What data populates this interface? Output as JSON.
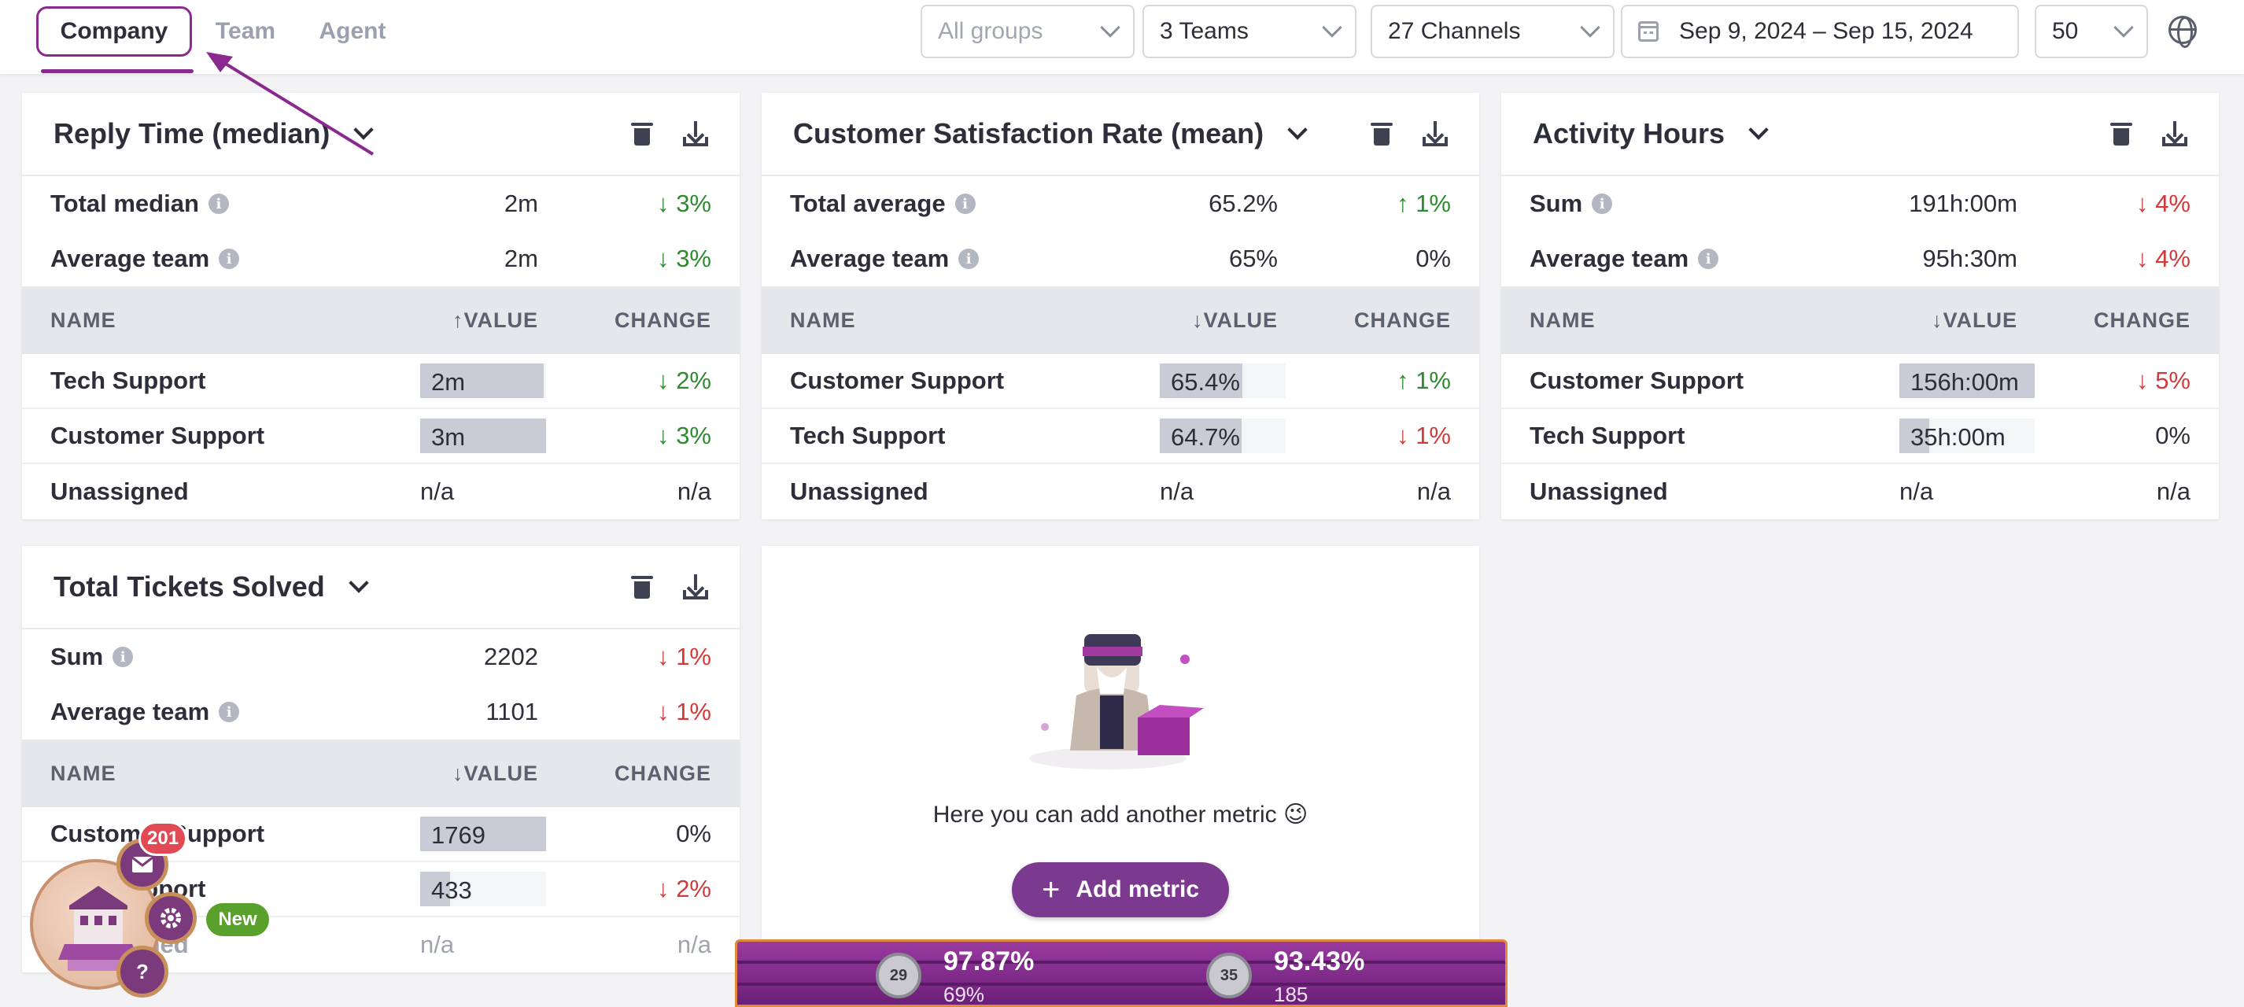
{
  "tabs": [
    "Company",
    "Team",
    "Agent"
  ],
  "filters": {
    "groups_placeholder": "All groups",
    "teams": "3 Teams",
    "channels": "27 Channels",
    "date_range": "Sep 9, 2024 – Sep 15, 2024",
    "page_size": "50"
  },
  "common": {
    "col_name": "NAME",
    "col_value": "VALUE",
    "col_change": "CHANGE",
    "info_glyph": "i"
  },
  "cards": {
    "reply_time": {
      "title": "Reply Time (median)",
      "summary": [
        {
          "label": "Total median",
          "value": "2m",
          "change": "↓ 3%"
        },
        {
          "label": "Average team",
          "value": "2m",
          "change": "↓ 3%"
        }
      ],
      "sort_arrow": "↑",
      "rows": [
        {
          "name": "Tech Support",
          "value": "2m",
          "change": "↓ 2%"
        },
        {
          "name": "Customer Support",
          "value": "3m",
          "change": "↓ 3%"
        },
        {
          "name": "Unassigned",
          "value": "n/a",
          "change": "n/a"
        }
      ]
    },
    "csat": {
      "title": "Customer Satisfaction Rate (mean)",
      "summary": [
        {
          "label": "Total average",
          "value": "65.2%",
          "change": "↑ 1%"
        },
        {
          "label": "Average team",
          "value": "65%",
          "change": "0%"
        }
      ],
      "sort_arrow": "↓",
      "rows": [
        {
          "name": "Customer Support",
          "value": "65.4%",
          "change": "↑ 1%"
        },
        {
          "name": "Tech Support",
          "value": "64.7%",
          "change": "↓ 1%"
        },
        {
          "name": "Unassigned",
          "value": "n/a",
          "change": "n/a"
        }
      ]
    },
    "activity": {
      "title": "Activity Hours",
      "summary": [
        {
          "label": "Sum",
          "value": "191h:00m",
          "change": "↓ 4%"
        },
        {
          "label": "Average team",
          "value": "95h:30m",
          "change": "↓ 4%"
        }
      ],
      "sort_arrow": "↓",
      "rows": [
        {
          "name": "Customer Support",
          "value": "156h:00m",
          "change": "↓ 5%"
        },
        {
          "name": "Tech Support",
          "value": "35h:00m",
          "change": "0%"
        },
        {
          "name": "Unassigned",
          "value": "n/a",
          "change": "n/a"
        }
      ]
    },
    "tickets": {
      "title": "Total Tickets Solved",
      "summary": [
        {
          "label": "Sum",
          "value": "2202",
          "change": "↓ 1%"
        },
        {
          "label": "Average team",
          "value": "1101",
          "change": "↓ 1%"
        }
      ],
      "sort_arrow": "↓",
      "rows": [
        {
          "name": "Customer Support",
          "value": "1769",
          "change": "0%"
        },
        {
          "name": "Tech Support",
          "value": "433",
          "change": "↓ 2%"
        },
        {
          "name": "Unassigned",
          "value": "n/a",
          "change": "n/a"
        }
      ]
    }
  },
  "add_metric": {
    "text": "Here you can add another metric 😉",
    "button": "Add metric",
    "plus": "+"
  },
  "banner": {
    "left": {
      "rank": "29",
      "percent": "97.87%",
      "sub": "69%"
    },
    "right": {
      "rank": "35",
      "percent": "93.43%",
      "sub": "185"
    }
  },
  "widget": {
    "notifications": "201",
    "new_label": "New",
    "help_glyph": "?"
  },
  "colors": {
    "accent": "#8a2a8f",
    "positive": "#2e8a2e",
    "negative": "#d23a3a"
  }
}
